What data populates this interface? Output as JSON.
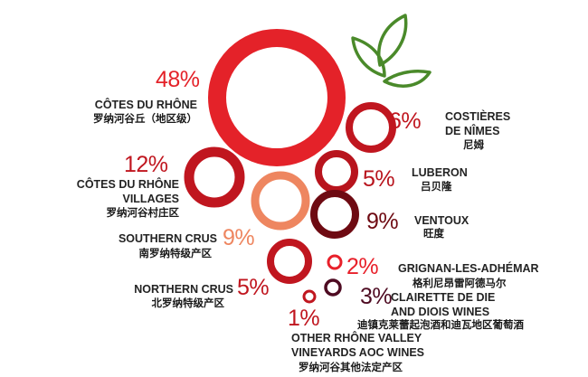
{
  "chart_data": {
    "type": "bubble",
    "unit": "%",
    "items": [
      {
        "pct": "48%",
        "value": 48,
        "name": "CÔTES DU RHÔNE",
        "name_zh": "罗纳河谷丘（地区级）",
        "color": "#e42229"
      },
      {
        "pct": "6%",
        "value": 6,
        "name": [
          "COSTIÈRES",
          "DE NÎMES"
        ],
        "name_zh": "尼姆",
        "color": "#c0161f"
      },
      {
        "pct": "12%",
        "value": 12,
        "name": [
          "CÔTES DU RHÔNE",
          "VILLAGES"
        ],
        "name_zh": "罗纳河谷村庄区",
        "color": "#c0161f"
      },
      {
        "pct": "5%",
        "value": 5,
        "name": "LUBERON",
        "name_zh": "吕贝隆",
        "color": "#b8141d"
      },
      {
        "pct": "9%",
        "value": 9,
        "name": "SOUTHERN CRUS",
        "name_zh": "南罗纳特级产区",
        "color": "#ee8660"
      },
      {
        "pct": "9%",
        "value": 9,
        "name": "VENTOUX",
        "name_zh": "旺度",
        "color": "#6e0a12"
      },
      {
        "pct": "2%",
        "value": 2,
        "name": "GRIGNAN-LES-ADHÉMAR",
        "name_zh": "格利尼昂雷阿德马尔",
        "color": "#e8202a"
      },
      {
        "pct": "5%",
        "value": 5,
        "name": "NORTHERN CRUS",
        "name_zh": "北罗纳特级产区",
        "color": "#c0161f"
      },
      {
        "pct": "3%",
        "value": 3,
        "name": [
          "CLAIRETTE DE DIE",
          "AND DIOIS WINES"
        ],
        "name_zh": "迪镇克莱蕾起泡酒和迪瓦地区葡萄酒",
        "color": "#4e0b22"
      },
      {
        "pct": "1%",
        "value": 1,
        "name": [
          "OTHER RHÔNE VALLEY",
          "VINEYARDS AOC WINES"
        ],
        "name_zh": "罗纳河谷其他法定产区",
        "color": "#c0161f"
      }
    ],
    "leaf_color": "#4a8a2a",
    "label_color": "#232323"
  }
}
